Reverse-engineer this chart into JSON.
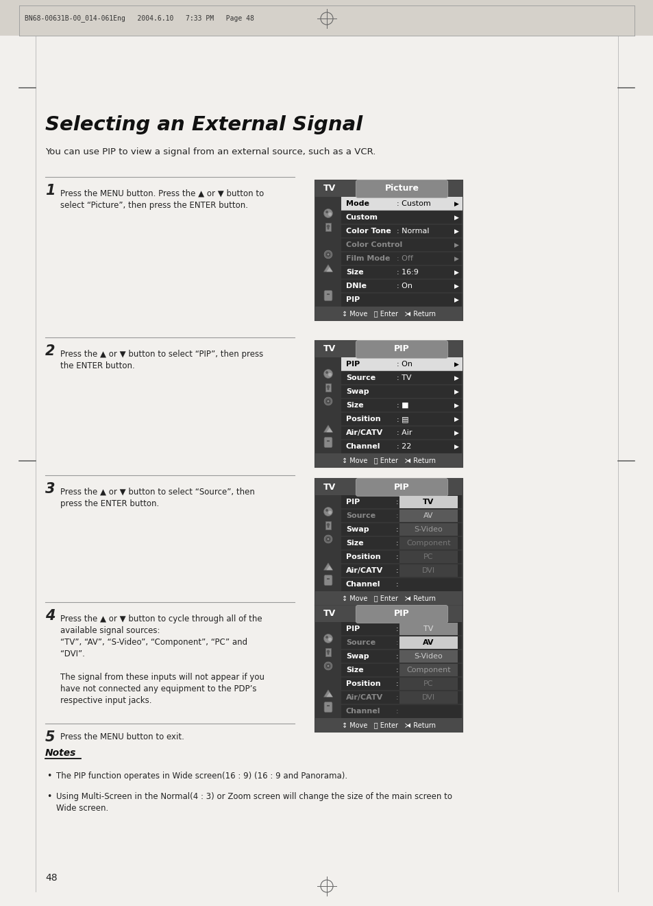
{
  "page_bg": "#f2f0ed",
  "header_bg": "#d5d1ca",
  "header_text": "BN68-00631B-00_014-061Eng   2004.6.10   7:33 PM   Page 48",
  "title": "Selecting an External Signal",
  "intro": "You can use PIP to view a signal from an external source, such as a VCR.",
  "steps": [
    {
      "num": "1",
      "text": "Press the MENU button. Press the ▲ or ▼ button to\nselect “Picture”, then press the ENTER button.",
      "menu": {
        "title_left": "TV",
        "title_right": "Picture",
        "rows": [
          {
            "label": "Mode",
            "value": ": Custom",
            "arrow": true,
            "dim": false,
            "highlighted": true,
            "popup": null
          },
          {
            "label": "Custom",
            "value": "",
            "arrow": true,
            "dim": false,
            "highlighted": false,
            "popup": null
          },
          {
            "label": "Color Tone",
            "value": ": Normal",
            "arrow": true,
            "dim": false,
            "highlighted": false,
            "popup": null
          },
          {
            "label": "Color Control",
            "value": "",
            "arrow": true,
            "dim": true,
            "highlighted": false,
            "popup": null
          },
          {
            "label": "Film Mode",
            "value": ": Off",
            "arrow": true,
            "dim": true,
            "highlighted": false,
            "popup": null
          },
          {
            "label": "Size",
            "value": ": 16:9",
            "arrow": true,
            "dim": false,
            "highlighted": false,
            "popup": null
          },
          {
            "label": "DNIe",
            "value": ": On",
            "arrow": true,
            "dim": false,
            "highlighted": false,
            "popup": null
          },
          {
            "label": "PIP",
            "value": "",
            "arrow": true,
            "dim": false,
            "highlighted": false,
            "popup": null
          }
        ],
        "footer": "↕ Move   ⮐ Enter   ⧕ Return",
        "icon_rows": [
          1,
          3,
          5,
          7,
          8
        ]
      }
    },
    {
      "num": "2",
      "text": "Press the ▲ or ▼ button to select “PIP”, then press\nthe ENTER button.",
      "menu": {
        "title_left": "TV",
        "title_right": "PIP",
        "rows": [
          {
            "label": "PIP",
            "value": ": On",
            "arrow": true,
            "dim": false,
            "highlighted": true,
            "popup": null
          },
          {
            "label": "Source",
            "value": ": TV",
            "arrow": true,
            "dim": false,
            "highlighted": false,
            "popup": null
          },
          {
            "label": "Swap",
            "value": "",
            "arrow": true,
            "dim": false,
            "highlighted": false,
            "popup": null
          },
          {
            "label": "Size",
            "value": ": ■",
            "arrow": true,
            "dim": false,
            "highlighted": false,
            "popup": null
          },
          {
            "label": "Position",
            "value": ": ▤",
            "arrow": true,
            "dim": false,
            "highlighted": false,
            "popup": null
          },
          {
            "label": "Air/CATV",
            "value": ": Air",
            "arrow": true,
            "dim": false,
            "highlighted": false,
            "popup": null
          },
          {
            "label": "Channel",
            "value": ": 22",
            "arrow": true,
            "dim": false,
            "highlighted": false,
            "popup": null
          }
        ],
        "footer": "↕ Move   ⮐ Enter   ⧕ Return",
        "icon_rows": [
          1,
          2,
          3,
          5,
          7
        ]
      }
    },
    {
      "num": "3",
      "text": "Press the ▲ or ▼ button to select “Source”, then\npress the ENTER button.",
      "menu": {
        "title_left": "TV",
        "title_right": "PIP",
        "rows": [
          {
            "label": "PIP",
            "value": ":",
            "arrow": false,
            "dim": false,
            "highlighted": false,
            "popup": "TV"
          },
          {
            "label": "Source",
            "value": ":",
            "arrow": false,
            "dim": true,
            "highlighted": false,
            "popup": "AV"
          },
          {
            "label": "Swap",
            "value": ":",
            "arrow": false,
            "dim": false,
            "highlighted": false,
            "popup": "S-Video"
          },
          {
            "label": "Size",
            "value": ":",
            "arrow": false,
            "dim": false,
            "highlighted": false,
            "popup": "Component"
          },
          {
            "label": "Position",
            "value": ":",
            "arrow": false,
            "dim": false,
            "highlighted": false,
            "popup": "PC"
          },
          {
            "label": "Air/CATV",
            "value": ":",
            "arrow": false,
            "dim": false,
            "highlighted": false,
            "popup": "DVI"
          },
          {
            "label": "Channel",
            "value": ":",
            "arrow": false,
            "dim": false,
            "highlighted": false,
            "popup": ""
          }
        ],
        "popup_highlight": 0,
        "footer": "↕ Move   ⮐ Enter   ⧕ Return",
        "icon_rows": [
          1,
          2,
          3,
          5,
          7
        ]
      }
    },
    {
      "num": "4",
      "text": "Press the ▲ or ▼ button to cycle through all of the\navailable signal sources:\n“TV”, “AV”, “S-Video”, “Component”, “PC” and\n“DVI”.\n\nThe signal from these inputs will not appear if you\nhave not connected any equipment to the PDP’s\nrespective input jacks.",
      "menu": {
        "title_left": "TV",
        "title_right": "PIP",
        "rows": [
          {
            "label": "PIP",
            "value": ":",
            "arrow": false,
            "dim": false,
            "highlighted": false,
            "popup": "TV"
          },
          {
            "label": "Source",
            "value": ":",
            "arrow": false,
            "dim": true,
            "highlighted": false,
            "popup": "AV"
          },
          {
            "label": "Swap",
            "value": ":",
            "arrow": false,
            "dim": false,
            "highlighted": false,
            "popup": "S-Video"
          },
          {
            "label": "Size",
            "value": ":",
            "arrow": false,
            "dim": false,
            "highlighted": false,
            "popup": "Component"
          },
          {
            "label": "Position",
            "value": ":",
            "arrow": false,
            "dim": false,
            "highlighted": false,
            "popup": "PC"
          },
          {
            "label": "Air/CATV",
            "value": ":",
            "arrow": false,
            "dim": true,
            "highlighted": false,
            "popup": "DVI"
          },
          {
            "label": "Channel",
            "value": ":",
            "arrow": false,
            "dim": true,
            "highlighted": false,
            "popup": ""
          }
        ],
        "popup_highlight": 1,
        "footer": "↕ Move   ⮐ Enter   ⧕ Return",
        "icon_rows": [
          1,
          2,
          3,
          5,
          7
        ]
      }
    }
  ],
  "step5": {
    "num": "5",
    "text": "Press the MENU button to exit."
  },
  "notes_title": "Notes",
  "notes": [
    "The PIP function operates in Wide screen(16 : 9) (16 : 9 and Panorama).",
    "Using Multi-Screen in the Normal(4 : 3) or Zoom screen will change the size of the main screen to\nWide screen."
  ],
  "page_num": "48"
}
